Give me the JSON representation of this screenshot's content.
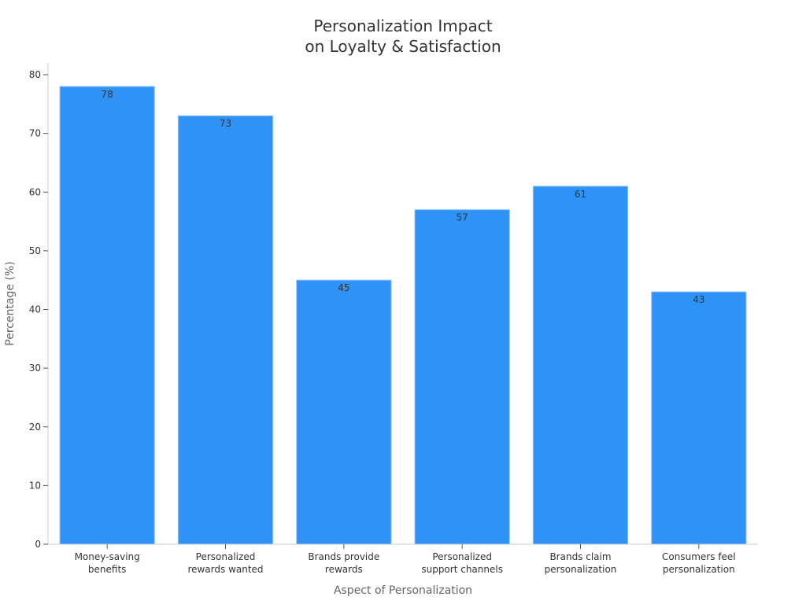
{
  "chart_data": {
    "type": "bar",
    "title_lines": [
      "Personalization Impact",
      "on Loyalty & Satisfaction"
    ],
    "xlabel": "Aspect of Personalization",
    "ylabel": "Percentage (%)",
    "ylim": [
      0,
      80
    ],
    "yticks": [
      0,
      10,
      20,
      30,
      40,
      50,
      60,
      70,
      80
    ],
    "categories": [
      [
        "Money-saving",
        "benefits"
      ],
      [
        "Personalized",
        "rewards wanted"
      ],
      [
        "Brands provide",
        "rewards"
      ],
      [
        "Personalized",
        "support channels"
      ],
      [
        "Brands claim",
        "personalization"
      ],
      [
        "Consumers feel",
        "personalization"
      ]
    ],
    "values": [
      78,
      73,
      45,
      57,
      61,
      43
    ],
    "bar_color": "#2f92f7",
    "grid": false,
    "legend": "none"
  }
}
